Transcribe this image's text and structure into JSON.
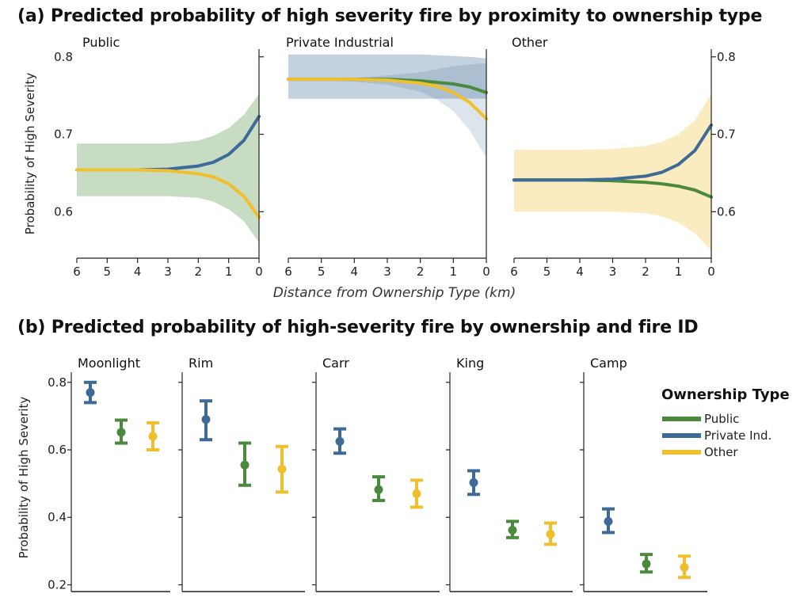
{
  "chart_data": [
    {
      "type": "line",
      "title": "(a) Predicted probability of high severity fire by proximity to ownership type",
      "xlabel": "Distance from Ownership Type (km)",
      "ylabel": "Probability of High Severity",
      "x_reversed": true,
      "xlim": [
        6,
        0
      ],
      "ylim": [
        0.54,
        0.81
      ],
      "xticks": [
        "6",
        "5",
        "4",
        "3",
        "2",
        "1",
        "0"
      ],
      "yticks": [
        "0.6",
        "0.7",
        "0.8"
      ],
      "colors": {
        "Public": "#4a8a3c",
        "Private Ind.": "#3d6a96",
        "Other": "#f0bf2d"
      },
      "panels": [
        {
          "name": "Public",
          "bands": [
            {
              "series": "Public",
              "x": [
                6,
                5,
                4,
                3,
                2,
                1.5,
                1,
                0.5,
                0
              ],
              "lower": [
                0.62,
                0.62,
                0.62,
                0.62,
                0.618,
                0.613,
                0.603,
                0.588,
                0.56
              ],
              "upper": [
                0.688,
                0.688,
                0.688,
                0.688,
                0.692,
                0.698,
                0.708,
                0.725,
                0.752
              ]
            }
          ],
          "series": [
            {
              "name": "Private Ind.",
              "x": [
                6,
                5,
                4,
                3,
                2,
                1.5,
                1,
                0.5,
                0
              ],
              "y": [
                0.654,
                0.654,
                0.654,
                0.655,
                0.659,
                0.664,
                0.674,
                0.692,
                0.723
              ]
            },
            {
              "name": "Other",
              "x": [
                6,
                5,
                4,
                3,
                2,
                1.5,
                1,
                0.5,
                0
              ],
              "y": [
                0.654,
                0.654,
                0.654,
                0.653,
                0.649,
                0.645,
                0.636,
                0.62,
                0.593
              ]
            }
          ]
        },
        {
          "name": "Private Industrial",
          "bands": [
            {
              "series": "Private Ind.",
              "x": [
                6,
                5,
                4,
                3,
                2,
                1.5,
                1,
                0.5,
                0
              ],
              "lower": [
                0.746,
                0.746,
                0.746,
                0.746,
                0.746,
                0.746,
                0.746,
                0.746,
                0.746
              ],
              "upper": [
                0.803,
                0.803,
                0.803,
                0.803,
                0.803,
                0.802,
                0.801,
                0.8,
                0.798
              ]
            },
            {
              "series": "Private Ind.",
              "x": [
                6,
                5,
                4,
                3,
                2,
                1.5,
                1,
                0.5,
                0
              ],
              "lower": [
                0.77,
                0.77,
                0.768,
                0.764,
                0.755,
                0.745,
                0.73,
                0.705,
                0.67
              ],
              "upper": [
                0.772,
                0.772,
                0.773,
                0.776,
                0.78,
                0.784,
                0.788,
                0.79,
                0.792
              ]
            }
          ],
          "series": [
            {
              "name": "Public",
              "x": [
                6,
                5,
                4,
                3,
                2,
                1.5,
                1,
                0.5,
                0
              ],
              "y": [
                0.771,
                0.771,
                0.771,
                0.771,
                0.769,
                0.767,
                0.765,
                0.761,
                0.754
              ]
            },
            {
              "name": "Other",
              "x": [
                6,
                5,
                4,
                3,
                2,
                1.5,
                1,
                0.5,
                0
              ],
              "y": [
                0.771,
                0.771,
                0.771,
                0.77,
                0.766,
                0.762,
                0.754,
                0.741,
                0.72
              ]
            }
          ]
        },
        {
          "name": "Other",
          "bands": [
            {
              "series": "Other",
              "x": [
                6,
                5,
                4,
                3,
                2,
                1.5,
                1,
                0.5,
                0
              ],
              "lower": [
                0.6,
                0.6,
                0.6,
                0.6,
                0.598,
                0.594,
                0.586,
                0.572,
                0.55
              ],
              "upper": [
                0.68,
                0.68,
                0.68,
                0.681,
                0.685,
                0.69,
                0.7,
                0.718,
                0.752
              ]
            }
          ],
          "series": [
            {
              "name": "Public",
              "x": [
                6,
                5,
                4,
                3,
                2,
                1.5,
                1,
                0.5,
                0
              ],
              "y": [
                0.641,
                0.641,
                0.641,
                0.64,
                0.638,
                0.636,
                0.633,
                0.628,
                0.619
              ]
            },
            {
              "name": "Private Ind.",
              "x": [
                6,
                5,
                4,
                3,
                2,
                1.5,
                1,
                0.5,
                0
              ],
              "y": [
                0.641,
                0.641,
                0.641,
                0.642,
                0.646,
                0.651,
                0.661,
                0.679,
                0.712
              ]
            }
          ]
        }
      ]
    },
    {
      "type": "scatter",
      "title": "(b) Predicted probability of high-severity fire by ownership and fire ID",
      "ylabel": "Probability of High Severity",
      "ylim": [
        0.18,
        0.83
      ],
      "yticks": [
        "0.2",
        "0.4",
        "0.6",
        "0.8"
      ],
      "legend": {
        "title": "Ownership Type",
        "placement": "right",
        "entries": [
          {
            "name": "Public",
            "color": "#4a8a3c"
          },
          {
            "name": "Private Ind.",
            "color": "#3d6a96"
          },
          {
            "name": "Other",
            "color": "#f0bf2d"
          }
        ]
      },
      "fires": [
        {
          "name": "Moonlight",
          "points": [
            {
              "series": "Private Ind.",
              "y": 0.77,
              "lower": 0.74,
              "upper": 0.8
            },
            {
              "series": "Public",
              "y": 0.652,
              "lower": 0.62,
              "upper": 0.688
            },
            {
              "series": "Other",
              "y": 0.64,
              "lower": 0.6,
              "upper": 0.68
            }
          ]
        },
        {
          "name": "Rim",
          "points": [
            {
              "series": "Private Ind.",
              "y": 0.69,
              "lower": 0.63,
              "upper": 0.745
            },
            {
              "series": "Public",
              "y": 0.555,
              "lower": 0.495,
              "upper": 0.62
            },
            {
              "series": "Other",
              "y": 0.543,
              "lower": 0.475,
              "upper": 0.61
            }
          ]
        },
        {
          "name": "Carr",
          "points": [
            {
              "series": "Private Ind.",
              "y": 0.625,
              "lower": 0.59,
              "upper": 0.662
            },
            {
              "series": "Public",
              "y": 0.482,
              "lower": 0.45,
              "upper": 0.52
            },
            {
              "series": "Other",
              "y": 0.47,
              "lower": 0.43,
              "upper": 0.51
            }
          ]
        },
        {
          "name": "King",
          "points": [
            {
              "series": "Private Ind.",
              "y": 0.503,
              "lower": 0.468,
              "upper": 0.538
            },
            {
              "series": "Public",
              "y": 0.362,
              "lower": 0.34,
              "upper": 0.388
            },
            {
              "series": "Other",
              "y": 0.35,
              "lower": 0.32,
              "upper": 0.383
            }
          ]
        },
        {
          "name": "Camp",
          "points": [
            {
              "series": "Private Ind.",
              "y": 0.388,
              "lower": 0.355,
              "upper": 0.425
            },
            {
              "series": "Public",
              "y": 0.262,
              "lower": 0.238,
              "upper": 0.29
            },
            {
              "series": "Other",
              "y": 0.252,
              "lower": 0.222,
              "upper": 0.285
            }
          ]
        }
      ]
    }
  ]
}
